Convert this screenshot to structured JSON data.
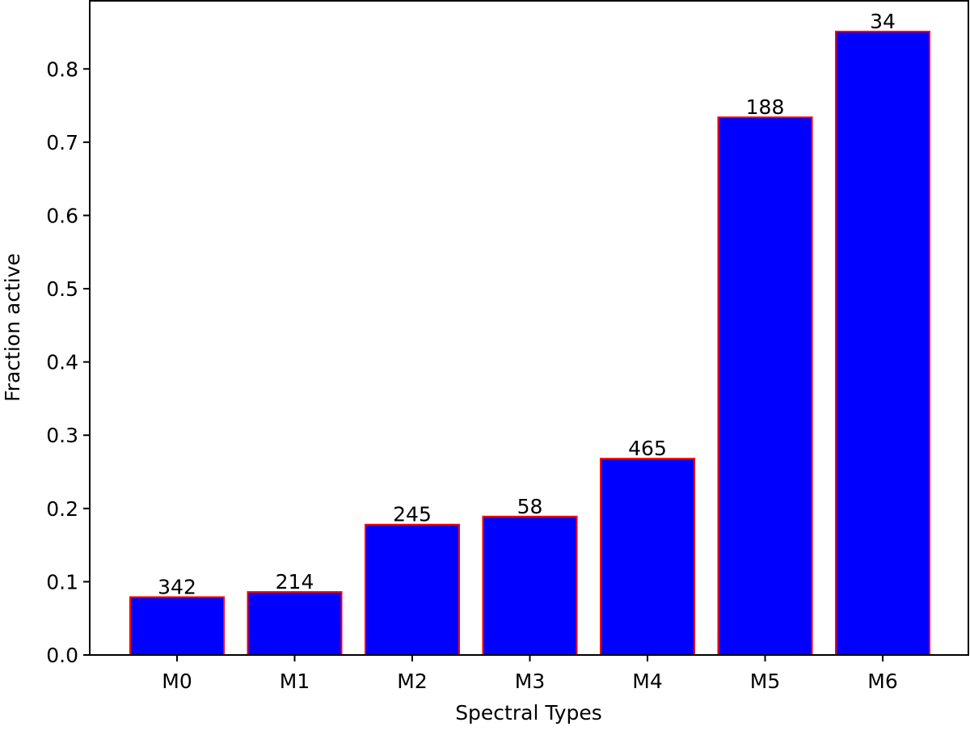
{
  "chart_data": {
    "type": "bar",
    "title": "",
    "xlabel": "Spectral Types",
    "ylabel": "Fraction active",
    "categories": [
      "M0",
      "M1",
      "M2",
      "M3",
      "M4",
      "M5",
      "M6"
    ],
    "values": [
      0.079,
      0.086,
      0.178,
      0.189,
      0.268,
      0.734,
      0.851
    ],
    "bar_labels": [
      "342",
      "214",
      "245",
      "58",
      "465",
      "188",
      "34"
    ],
    "ylim": [
      0,
      0.893
    ],
    "yticks": [
      0.0,
      0.1,
      0.2,
      0.3,
      0.4,
      0.5,
      0.6,
      0.7,
      0.8
    ],
    "ytick_labels": [
      "0.0",
      "0.1",
      "0.2",
      "0.3",
      "0.4",
      "0.5",
      "0.6",
      "0.7",
      "0.8"
    ],
    "bar_fill": "#0000ff",
    "bar_edge": "#ff0000",
    "grid": false,
    "legend": "none"
  }
}
